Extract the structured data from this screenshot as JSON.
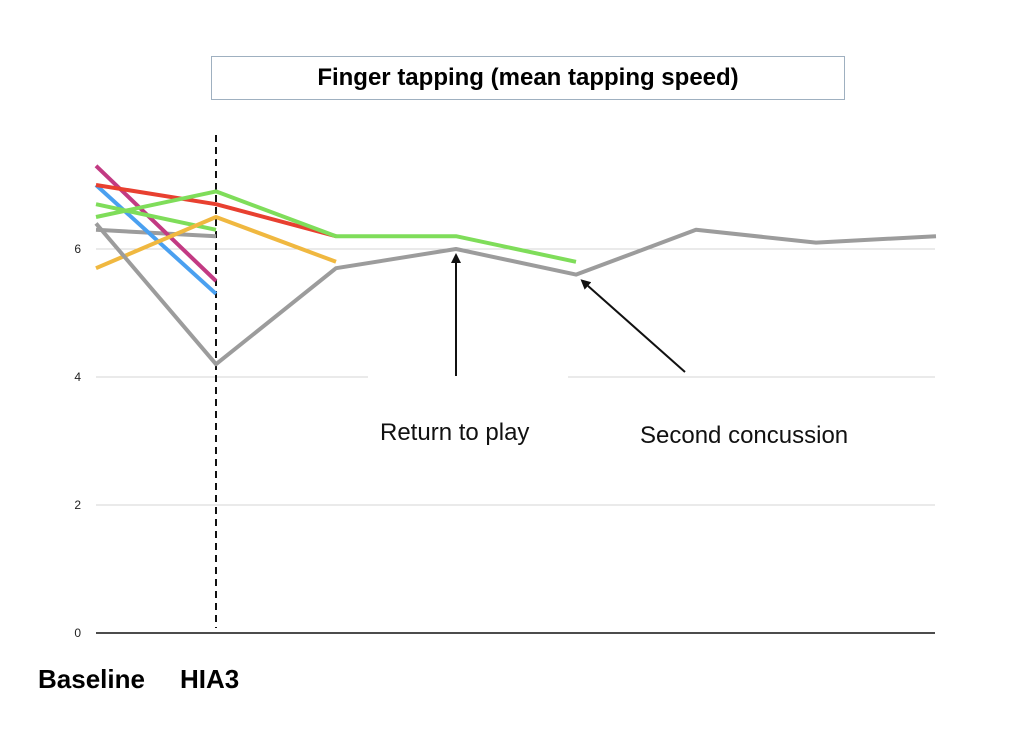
{
  "chart_data": {
    "type": "line",
    "title": "Finger tapping (mean tapping speed)",
    "categories": [
      "Baseline",
      "HIA3"
    ],
    "ylim": [
      0,
      8
    ],
    "yticks": [
      0,
      2,
      4,
      6
    ],
    "grid": true,
    "vertical_marker": "HIA3",
    "series": [
      {
        "color": "#9c9c9c",
        "x": [
          0,
          1
        ],
        "y": [
          6.3,
          6.2
        ]
      },
      {
        "color": "#4aa0f0",
        "x": [
          0,
          1
        ],
        "y": [
          7.0,
          5.3
        ]
      },
      {
        "color": "#c23a83",
        "x": [
          0,
          1
        ],
        "y": [
          7.3,
          5.5
        ]
      },
      {
        "color": "#7fdd5a",
        "x": [
          0,
          1
        ],
        "y": [
          6.7,
          6.3
        ]
      },
      {
        "color": "#f0b840",
        "x": [
          0,
          1,
          2
        ],
        "y": [
          5.7,
          6.5,
          5.8
        ]
      },
      {
        "color": "#e84030",
        "x": [
          0,
          1,
          2
        ],
        "y": [
          7.0,
          6.7,
          6.2
        ]
      },
      {
        "color": "#7fdd5a",
        "x": [
          0,
          1,
          2,
          3,
          4
        ],
        "y": [
          6.5,
          6.9,
          6.2,
          6.2,
          5.8
        ]
      },
      {
        "color": "#9c9c9c",
        "x": [
          0,
          1,
          2,
          3,
          4,
          5,
          6,
          7
        ],
        "y": [
          6.4,
          4.2,
          5.7,
          6.0,
          5.6,
          6.3,
          6.1,
          6.2
        ]
      }
    ],
    "annotations": [
      {
        "text": "Return to play",
        "arrow_to": {
          "x": 3,
          "y": 6.0
        }
      },
      {
        "text": "Second concussion",
        "arrow_to": {
          "x": 4,
          "y": 5.6
        }
      }
    ]
  }
}
